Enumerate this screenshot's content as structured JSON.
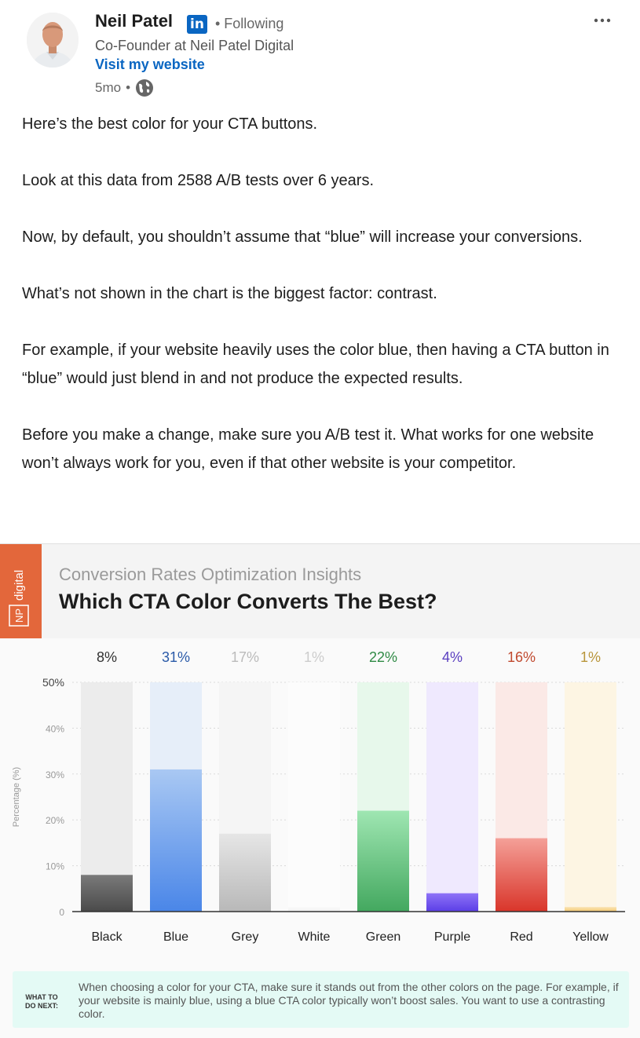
{
  "author": {
    "name": "Neil Patel",
    "badge": "in",
    "following": "• Following",
    "headline": "Co-Founder at Neil Patel Digital",
    "website_link": "Visit my website",
    "time": "5mo",
    "dot": "•"
  },
  "post": {
    "paragraphs": [
      "Here’s the best color for your CTA buttons.",
      "Look at this data from 2588 A/B tests over 6 years.",
      "Now, by default, you shouldn’t assume that “blue” will increase your conversions.",
      "What’s not shown in the chart is the biggest factor: contrast.",
      "For example, if your website heavily uses the color blue, then having a CTA button in “blue” would just blend in and not produce the expected results.",
      "Before you make a change, make sure you A/B test it. What works for one website won’t always work for you, even if that other website is your competitor."
    ]
  },
  "infographic": {
    "brand_top": "NP",
    "brand_bottom": "digital",
    "subtitle": "Conversion Rates Optimization Insights",
    "title": "Which CTA Color Converts The Best?",
    "next_label": "WHAT TO DO NEXT:",
    "next_text": "When choosing a color for your CTA, make sure it stands out from the other colors on the page. For example, if your website is mainly blue, using a blue CTA color typically won’t boost sales. You want to use a contrasting color."
  },
  "chart_data": {
    "type": "bar",
    "title": "Which CTA Color Converts The Best?",
    "ylabel": "Percentage (%)",
    "ylim": [
      0,
      50
    ],
    "yticks": [
      0,
      10,
      20,
      30,
      40,
      50
    ],
    "ytick_labels": [
      "0",
      "10%",
      "20%",
      "30%",
      "40%",
      "50%"
    ],
    "grid": true,
    "categories": [
      "Black",
      "Blue",
      "Grey",
      "White",
      "Green",
      "Purple",
      "Red",
      "Yellow"
    ],
    "values": [
      8,
      31,
      17,
      1,
      22,
      4,
      16,
      1
    ],
    "value_labels": [
      "8%",
      "31%",
      "17%",
      "1%",
      "22%",
      "4%",
      "16%",
      "1%"
    ],
    "bar_colors": [
      "#4a4a4a",
      "#4a86e8",
      "#b8b8b8",
      "#f0f0f0",
      "#43a85f",
      "#5b3ee6",
      "#d9352a",
      "#f4c870"
    ],
    "bar_colors_light": [
      "#7a7a7a",
      "#a9c8f3",
      "#e6e6e6",
      "#fafafa",
      "#9fe6b2",
      "#8e73f7",
      "#f4a098",
      "#fae4b5"
    ],
    "track_colors": [
      "#ececec",
      "#e6eef9",
      "#f5f5f5",
      "#fcfcfc",
      "#e7f8eb",
      "#efe9fe",
      "#fbe9e6",
      "#fdf5e3"
    ],
    "label_colors": [
      "#333333",
      "#2a5aa8",
      "#bbbbbb",
      "#cccccc",
      "#2f8a45",
      "#5a3fc0",
      "#c0492e",
      "#b8953a"
    ]
  }
}
